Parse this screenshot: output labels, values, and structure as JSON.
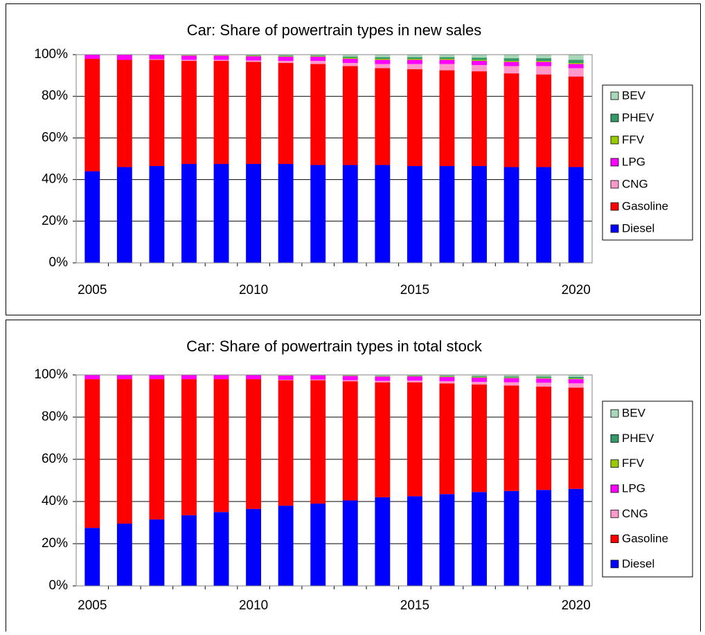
{
  "chart_data": [
    {
      "type": "stacked-bar",
      "title": "Car: Share of powertrain types in new sales",
      "x": [
        2005,
        2006,
        2007,
        2008,
        2009,
        2010,
        2011,
        2012,
        2013,
        2014,
        2015,
        2016,
        2017,
        2018,
        2019,
        2020
      ],
      "xlim": [
        2004.5,
        2020.5
      ],
      "xticks": [
        2005,
        2010,
        2015,
        2020
      ],
      "ylim": [
        0,
        100
      ],
      "yticks": [
        {
          "value": 0,
          "label": "0%"
        },
        {
          "value": 20,
          "label": "20%"
        },
        {
          "value": 40,
          "label": "40%"
        },
        {
          "value": 60,
          "label": "60%"
        },
        {
          "value": 80,
          "label": "80%"
        },
        {
          "value": 100,
          "label": "100%"
        }
      ],
      "grid": true,
      "legend": "right",
      "series": [
        {
          "name": "Diesel",
          "color": "#0000ff",
          "values": [
            44,
            46,
            46.5,
            47.5,
            47.5,
            47.5,
            47.5,
            47,
            47,
            47,
            46.5,
            46.5,
            46.5,
            46,
            46,
            46
          ]
        },
        {
          "name": "Gasoline",
          "color": "#ff0000",
          "values": [
            54,
            51.5,
            51,
            49.5,
            49.5,
            49,
            48.5,
            48.5,
            47.5,
            46.5,
            46.5,
            46,
            45.5,
            45,
            44.5,
            43.5
          ]
        },
        {
          "name": "CNG",
          "color": "#ff99cc",
          "values": [
            0,
            0,
            0.3,
            0.5,
            0.5,
            0.7,
            1,
            1.5,
            1.5,
            2,
            2.5,
            3,
            3,
            3.5,
            4,
            4
          ]
        },
        {
          "name": "LPG",
          "color": "#ff00ff",
          "values": [
            2,
            2.5,
            2.2,
            2,
            2,
            2,
            2,
            2,
            2,
            2,
            2,
            2,
            2,
            2,
            2,
            2
          ]
        },
        {
          "name": "FFV",
          "color": "#99cc00",
          "values": [
            0,
            0,
            0,
            0.2,
            0.2,
            0.3,
            0.3,
            0.3,
            0.5,
            0.5,
            0.5,
            0.5,
            0.5,
            0.5,
            0.5,
            0.5
          ]
        },
        {
          "name": "PHEV",
          "color": "#339966",
          "values": [
            0,
            0,
            0,
            0,
            0,
            0.2,
            0.3,
            0.3,
            0.6,
            0.8,
            0.8,
            0.8,
            1,
            1.3,
            1.3,
            1.5
          ]
        },
        {
          "name": "BEV",
          "color": "#a8d8b8",
          "values": [
            0,
            0,
            0,
            0.3,
            0.3,
            0.3,
            0.4,
            0.4,
            0.9,
            1.2,
            1.2,
            1.2,
            1.5,
            1.7,
            1.7,
            2.5
          ]
        }
      ]
    },
    {
      "type": "stacked-bar",
      "title": "Car: Share of powertrain types in total stock",
      "x": [
        2005,
        2006,
        2007,
        2008,
        2009,
        2010,
        2011,
        2012,
        2013,
        2014,
        2015,
        2016,
        2017,
        2018,
        2019,
        2020
      ],
      "xlim": [
        2004.5,
        2020.5
      ],
      "xticks": [
        2005,
        2010,
        2015,
        2020
      ],
      "ylim": [
        0,
        100
      ],
      "yticks": [
        {
          "value": 0,
          "label": "0%"
        },
        {
          "value": 20,
          "label": "20%"
        },
        {
          "value": 40,
          "label": "40%"
        },
        {
          "value": 60,
          "label": "60%"
        },
        {
          "value": 80,
          "label": "80%"
        },
        {
          "value": 100,
          "label": "100%"
        }
      ],
      "grid": true,
      "legend": "right",
      "series": [
        {
          "name": "Diesel",
          "color": "#0000ff",
          "values": [
            27.5,
            29.5,
            31.5,
            33.5,
            35,
            36.5,
            38,
            39,
            40.5,
            42,
            42.5,
            43.5,
            44.5,
            45,
            45.5,
            46
          ]
        },
        {
          "name": "Gasoline",
          "color": "#ff0000",
          "values": [
            70.5,
            68.5,
            66.5,
            64.5,
            63,
            61.5,
            59.5,
            58.5,
            56.5,
            54.5,
            54,
            52.5,
            51,
            50,
            49,
            48
          ]
        },
        {
          "name": "CNG",
          "color": "#ff99cc",
          "values": [
            0,
            0,
            0,
            0,
            0,
            0,
            0.2,
            0.3,
            0.5,
            0.7,
            0.8,
            1,
            1.2,
            1.5,
            1.8,
            2
          ]
        },
        {
          "name": "LPG",
          "color": "#ff00ff",
          "values": [
            2,
            2,
            2,
            2,
            2,
            2,
            2,
            2,
            2,
            2,
            2,
            2,
            2,
            2,
            2,
            2
          ]
        },
        {
          "name": "FFV",
          "color": "#99cc00",
          "values": [
            0,
            0,
            0,
            0,
            0,
            0,
            0.1,
            0.1,
            0.2,
            0.2,
            0.2,
            0.3,
            0.3,
            0.3,
            0.3,
            0.3
          ]
        },
        {
          "name": "PHEV",
          "color": "#339966",
          "values": [
            0,
            0,
            0,
            0,
            0,
            0,
            0,
            0,
            0.1,
            0.2,
            0.2,
            0.3,
            0.4,
            0.5,
            0.6,
            0.8
          ]
        },
        {
          "name": "BEV",
          "color": "#a8d8b8",
          "values": [
            0,
            0,
            0,
            0,
            0,
            0,
            0.2,
            0.1,
            0.2,
            0.4,
            0.3,
            0.4,
            0.6,
            0.7,
            0.8,
            0.9
          ]
        }
      ]
    }
  ]
}
